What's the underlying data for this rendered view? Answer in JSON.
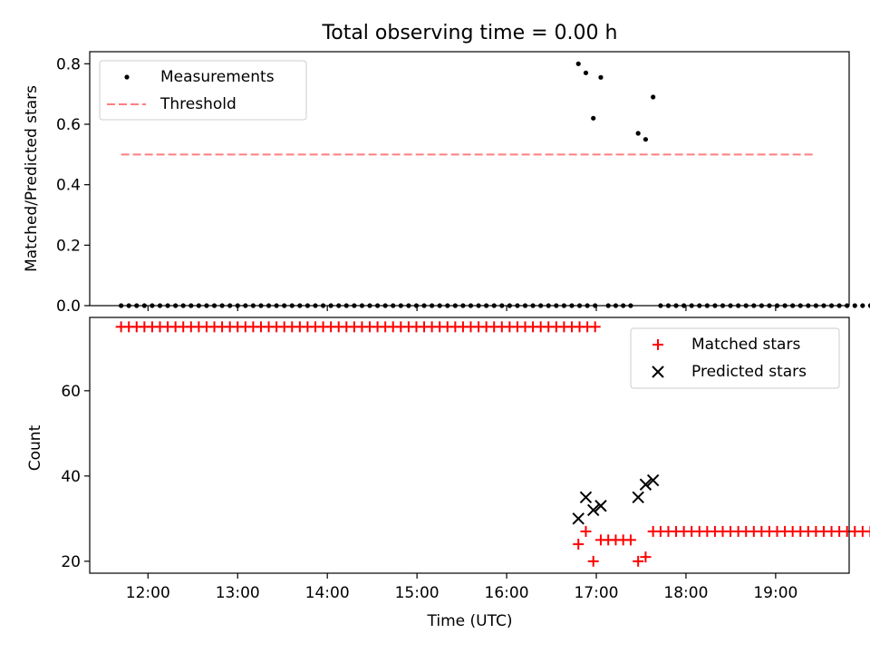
{
  "chart_data": [
    {
      "type": "scatter",
      "title": "Total observing time = 0.00 h",
      "xlabel": "",
      "ylabel": "Matched/Predicted stars",
      "ylim": [
        0,
        0.84
      ],
      "yticks": [
        "0.0",
        "0.2",
        "0.4",
        "0.6",
        "0.8"
      ],
      "xlim_hours": [
        11.35,
        19.82
      ],
      "legend": {
        "position": "upper-left",
        "entries": [
          "Measurements",
          "Threshold"
        ]
      },
      "threshold": {
        "value": 0.5,
        "x_start": "11:42",
        "x_end": "19:25",
        "color": "#ff7f7f",
        "style": "dashed"
      },
      "series": [
        {
          "name": "Measurements",
          "color": "#000000",
          "marker": "dot",
          "x_start": "11:42",
          "x_step_min": 5.2,
          "count": 62,
          "y": 0
        },
        {
          "name": "Measurements",
          "color": "#000000",
          "marker": "dot",
          "points": [
            [
              "16:48",
              0.8
            ],
            [
              "16:53",
              0.77
            ],
            [
              "16:58",
              0.62
            ],
            [
              "17:03",
              0.755
            ],
            [
              "17:08",
              0
            ],
            [
              "17:13",
              0
            ],
            [
              "17:18",
              0
            ],
            [
              "17:23",
              0
            ],
            [
              "17:28",
              0.57
            ],
            [
              "17:33",
              0.55
            ],
            [
              "17:38",
              0.69
            ]
          ]
        },
        {
          "name": "Measurements",
          "color": "#000000",
          "marker": "dot",
          "x_start": "17:43",
          "x_step_min": 5.2,
          "count": 34,
          "y": 0
        }
      ]
    },
    {
      "type": "scatter",
      "title": "",
      "xlabel": "Time (UTC)",
      "ylabel": "Count",
      "ylim": [
        17.2,
        77.2
      ],
      "yticks": [
        "20",
        "40",
        "60"
      ],
      "xticks": [
        "12:00",
        "13:00",
        "14:00",
        "15:00",
        "16:00",
        "17:00",
        "18:00",
        "19:00"
      ],
      "xlim_hours": [
        11.35,
        19.82
      ],
      "legend": {
        "position": "upper-right",
        "entries": [
          "Matched stars",
          "Predicted stars"
        ]
      },
      "series": [
        {
          "name": "Matched stars",
          "color": "#ff0000",
          "marker": "plus",
          "runs": [
            {
              "x_start": "11:42",
              "x_step_min": 5.2,
              "count": 62,
              "y": 75
            },
            {
              "x_start": "17:43",
              "x_step_min": 5.2,
              "count": 34,
              "y": 27
            }
          ],
          "points": [
            [
              "16:48",
              24
            ],
            [
              "16:53",
              27
            ],
            [
              "16:58",
              20
            ],
            [
              "17:03",
              25
            ],
            [
              "17:08",
              25
            ],
            [
              "17:13",
              25
            ],
            [
              "17:18",
              25
            ],
            [
              "17:23",
              25
            ],
            [
              "17:28",
              20
            ],
            [
              "17:33",
              21
            ],
            [
              "17:38",
              27
            ]
          ]
        },
        {
          "name": "Predicted stars",
          "color": "#000000",
          "marker": "x",
          "points": [
            [
              "16:48",
              30
            ],
            [
              "16:53",
              35
            ],
            [
              "16:58",
              32
            ],
            [
              "17:03",
              33
            ],
            [
              "17:28",
              35
            ],
            [
              "17:33",
              38
            ],
            [
              "17:38",
              39
            ]
          ]
        }
      ]
    }
  ]
}
